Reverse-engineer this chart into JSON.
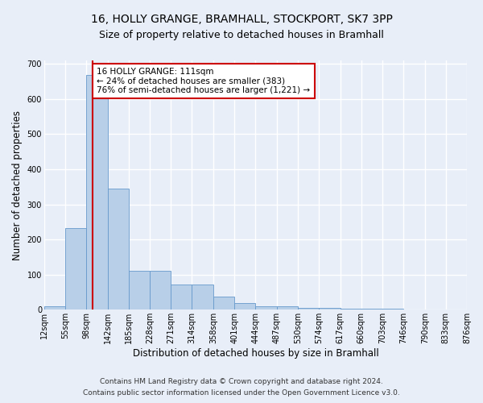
{
  "title_line1": "16, HOLLY GRANGE, BRAMHALL, STOCKPORT, SK7 3PP",
  "title_line2": "Size of property relative to detached houses in Bramhall",
  "xlabel": "Distribution of detached houses by size in Bramhall",
  "ylabel": "Number of detached properties",
  "footer_line1": "Contains HM Land Registry data © Crown copyright and database right 2024.",
  "footer_line2": "Contains public sector information licensed under the Open Government Licence v3.0.",
  "bin_edges": [
    12,
    55,
    98,
    142,
    185,
    228,
    271,
    314,
    358,
    401,
    444,
    487,
    530,
    574,
    617,
    660,
    703,
    746,
    790,
    833,
    876
  ],
  "bar_heights": [
    10,
    232,
    668,
    345,
    110,
    110,
    72,
    72,
    38,
    20,
    10,
    10,
    5,
    5,
    3,
    3,
    2,
    0,
    0,
    0
  ],
  "bar_color": "#b8cfe8",
  "bar_edgecolor": "#6699cc",
  "property_size": 111,
  "red_line_color": "#cc0000",
  "annotation_text": "16 HOLLY GRANGE: 111sqm\n← 24% of detached houses are smaller (383)\n76% of semi-detached houses are larger (1,221) →",
  "annotation_box_facecolor": "#ffffff",
  "annotation_box_edgecolor": "#cc0000",
  "ylim": [
    0,
    710
  ],
  "yticks": [
    0,
    100,
    200,
    300,
    400,
    500,
    600,
    700
  ],
  "bg_color": "#e8eef8",
  "plot_bg_color": "#e8eef8",
  "grid_color": "#ffffff",
  "title1_fontsize": 10,
  "title2_fontsize": 9,
  "xlabel_fontsize": 8.5,
  "ylabel_fontsize": 8.5,
  "tick_fontsize": 7,
  "footer_fontsize": 6.5
}
